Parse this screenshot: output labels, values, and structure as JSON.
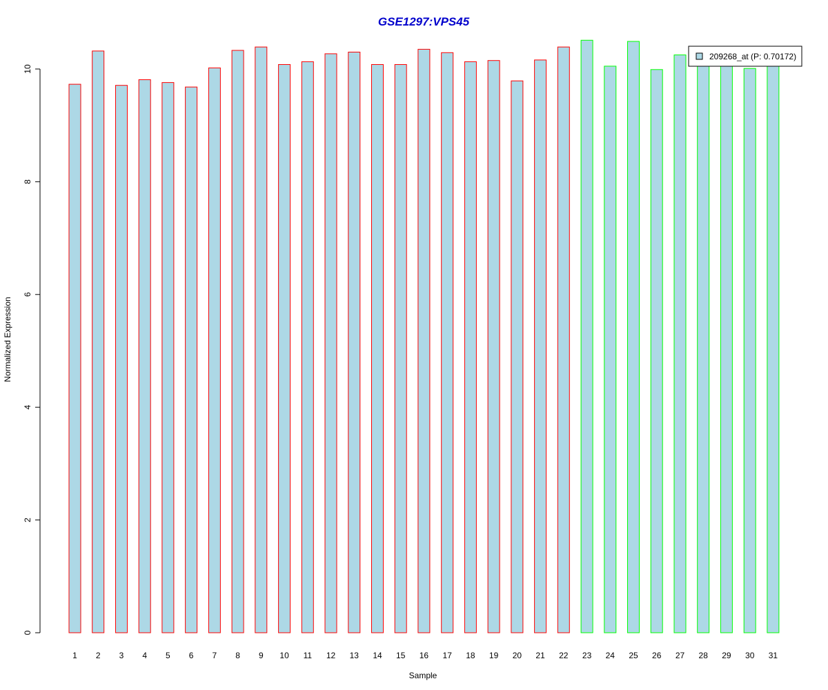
{
  "chart_data": {
    "type": "bar",
    "title": "GSE1297:VPS45",
    "xlabel": "Sample",
    "ylabel": "Normalized Expression",
    "ylim": [
      0,
      10.5
    ],
    "yticks": [
      0,
      2,
      4,
      6,
      8,
      10
    ],
    "grid": false,
    "legend_position": "top-right",
    "categories": [
      "1",
      "2",
      "3",
      "4",
      "5",
      "6",
      "7",
      "8",
      "9",
      "10",
      "11",
      "12",
      "13",
      "14",
      "15",
      "16",
      "17",
      "18",
      "19",
      "20",
      "21",
      "22",
      "23",
      "24",
      "25",
      "26",
      "27",
      "28",
      "29",
      "30",
      "31"
    ],
    "series": [
      {
        "name": "209268_at (P: 0.70172)",
        "fill_color": "#add8e6",
        "values": [
          9.73,
          10.32,
          9.71,
          9.81,
          9.76,
          9.68,
          10.02,
          10.33,
          10.39,
          10.08,
          10.13,
          10.27,
          10.3,
          10.08,
          10.08,
          10.35,
          10.29,
          10.13,
          10.15,
          9.79,
          10.16,
          10.39,
          10.51,
          10.05,
          10.49,
          9.99,
          10.25,
          10.2,
          10.15,
          10.01,
          10.2
        ],
        "group_border_colors": [
          "#ff0000",
          "#ff0000",
          "#ff0000",
          "#ff0000",
          "#ff0000",
          "#ff0000",
          "#ff0000",
          "#ff0000",
          "#ff0000",
          "#ff0000",
          "#ff0000",
          "#ff0000",
          "#ff0000",
          "#ff0000",
          "#ff0000",
          "#ff0000",
          "#ff0000",
          "#ff0000",
          "#ff0000",
          "#ff0000",
          "#ff0000",
          "#ff0000",
          "#00ff00",
          "#00ff00",
          "#00ff00",
          "#00ff00",
          "#00ff00",
          "#00ff00",
          "#00ff00",
          "#00ff00",
          "#00ff00"
        ]
      }
    ],
    "colors": {
      "title": "#0000cc",
      "bar_fill": "#add8e6",
      "legend_box": "#add8e6"
    }
  }
}
